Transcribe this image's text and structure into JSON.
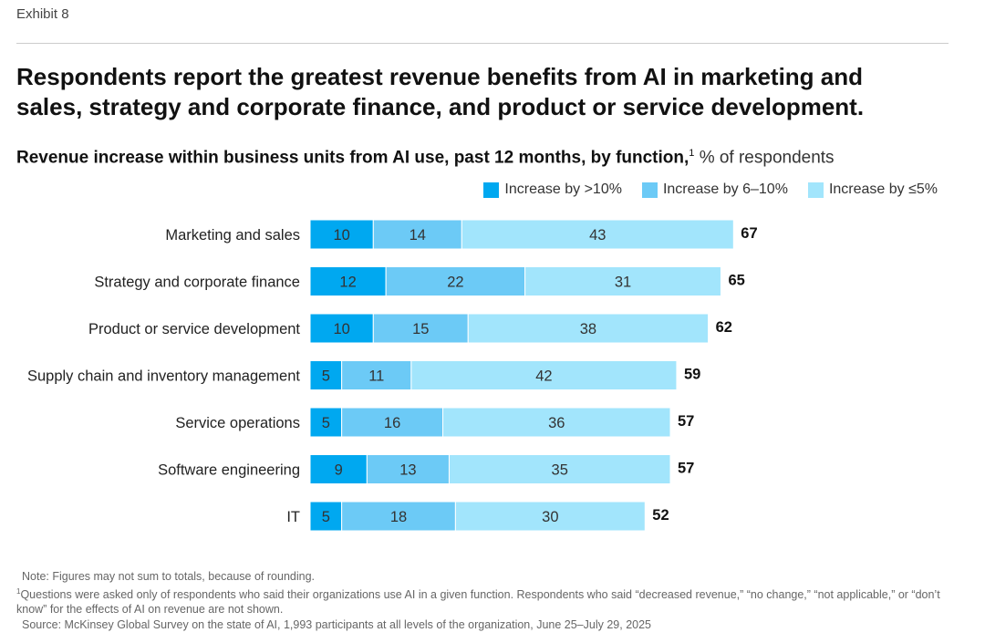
{
  "exhibit_label": "Exhibit 8",
  "title": "Respondents report the greatest revenue benefits from AI in marketing and sales, strategy and corporate finance, and product or service development.",
  "chart_data": {
    "type": "bar",
    "orientation": "horizontal-stacked",
    "title": "Revenue increase within business units from AI use, past 12 months, by function,",
    "title_footnote": "1",
    "unit": "% of respondents",
    "legend_position": "top-right",
    "categories": [
      "Marketing and sales",
      "Strategy and corporate finance",
      "Product or service development",
      "Supply chain and inventory management",
      "Service operations",
      "Software engineering",
      "IT"
    ],
    "series": [
      {
        "name": "Increase by >10%",
        "color": "#00a8f0",
        "values": [
          10,
          12,
          10,
          5,
          5,
          9,
          5
        ]
      },
      {
        "name": "Increase by 6–10%",
        "color": "#6ccaf6",
        "values": [
          14,
          22,
          15,
          11,
          16,
          13,
          18
        ]
      },
      {
        "name": "Increase by ≤5%",
        "color": "#a2e5fc",
        "values": [
          43,
          31,
          38,
          42,
          36,
          35,
          30
        ]
      }
    ],
    "totals": [
      67,
      65,
      62,
      59,
      57,
      57,
      52
    ]
  },
  "notes": {
    "note": "Note: Figures may not sum to totals, because of rounding.",
    "footnote_marker": "1",
    "footnote": "Questions were asked only of respondents who said their organizations use AI in a given function. Respondents who said “decreased revenue,” “no change,” “not applicable,” or “don’t know” for the effects of AI on revenue are not shown.",
    "source": "Source: McKinsey Global Survey on the state of AI, 1,993 participants at all levels of the organization, June 25–July 29, 2025"
  }
}
